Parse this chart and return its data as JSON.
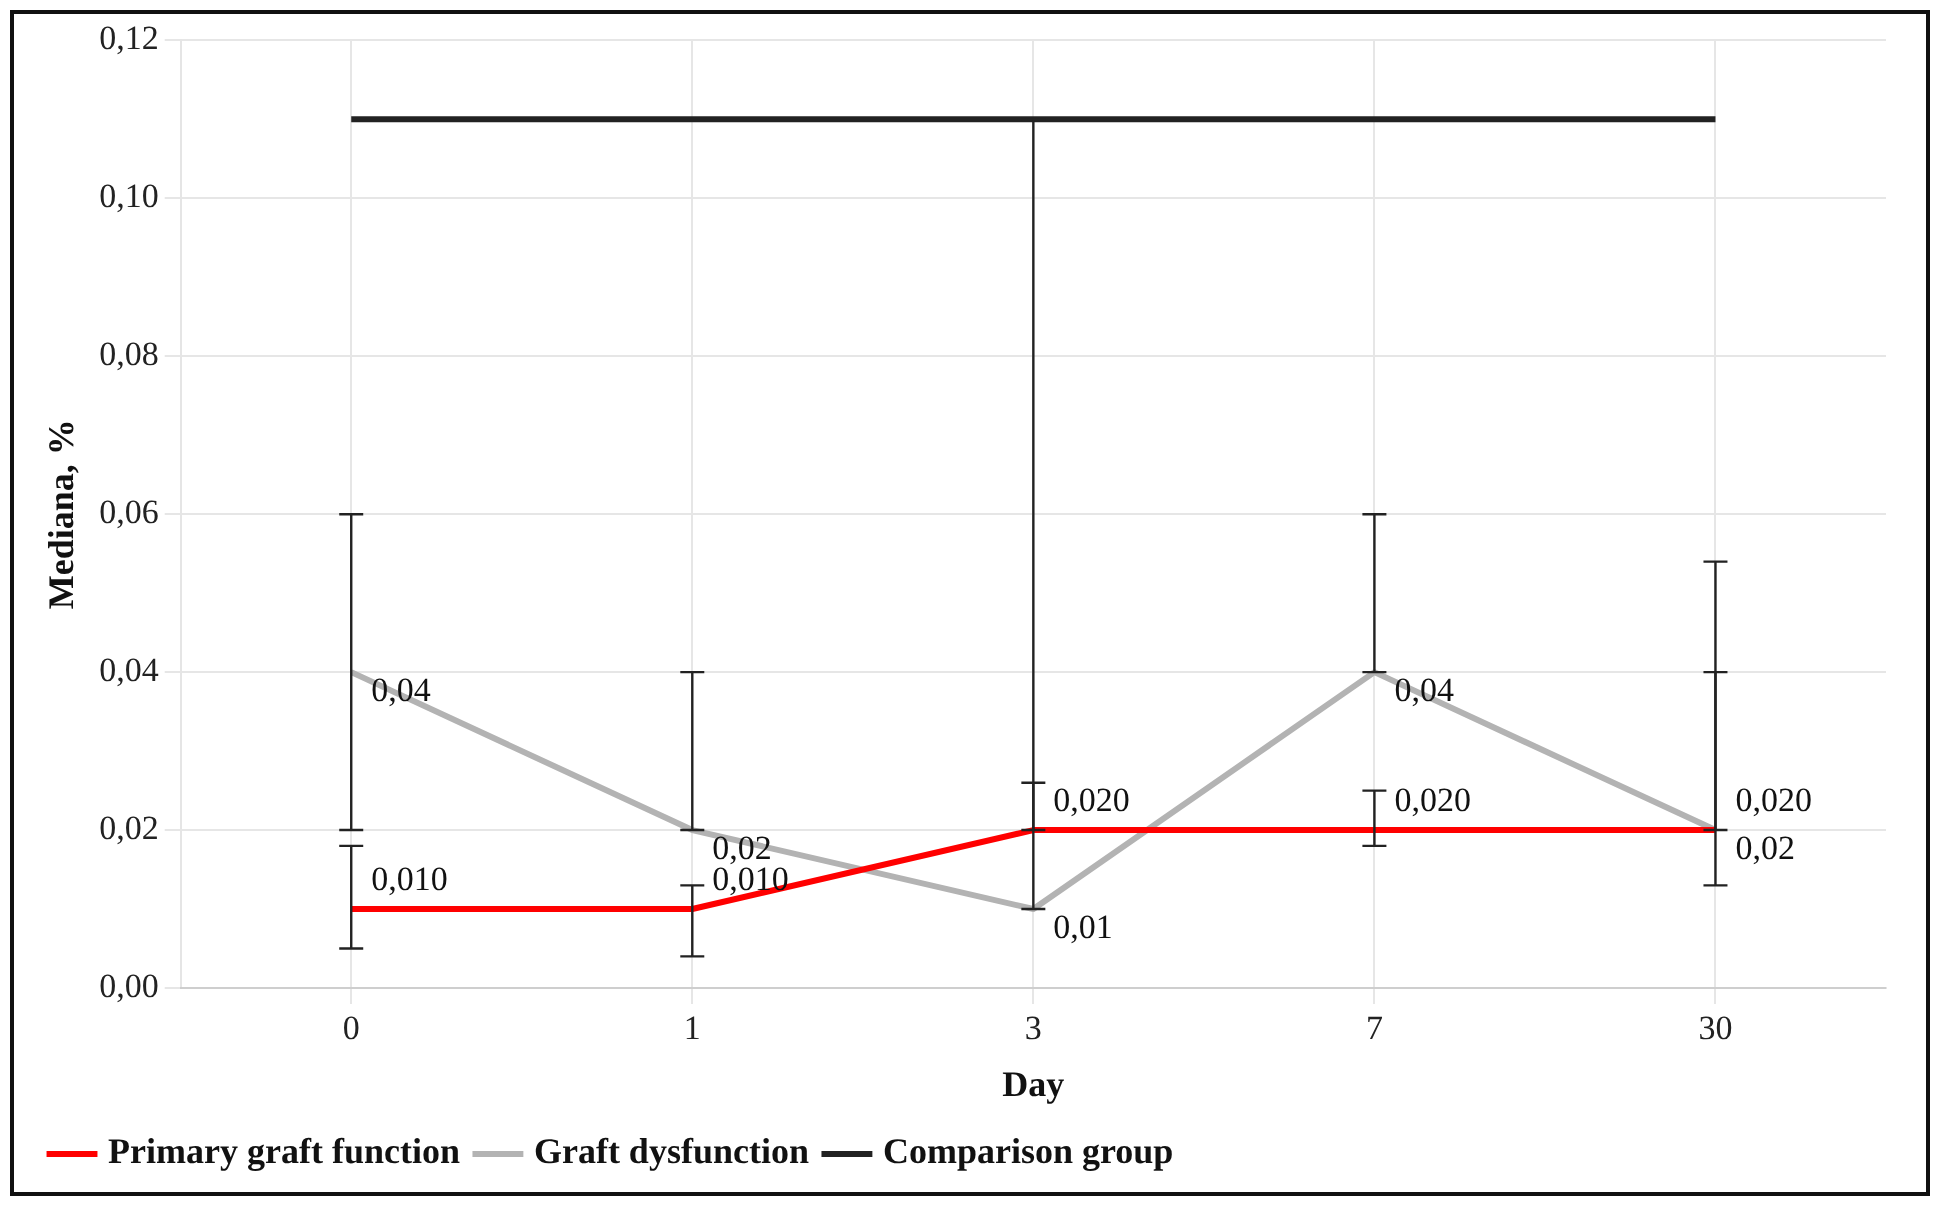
{
  "chart_data": {
    "type": "line",
    "xlabel": "Day",
    "ylabel": "Mediana, %",
    "categories": [
      "0",
      "1",
      "3",
      "7",
      "30"
    ],
    "ylim": [
      0,
      0.12
    ],
    "yticks": [
      {
        "value": 0,
        "label": "0,00"
      },
      {
        "value": 0.02,
        "label": "0,02"
      },
      {
        "value": 0.04,
        "label": "0,04"
      },
      {
        "value": 0.06,
        "label": "0,06"
      },
      {
        "value": 0.08,
        "label": "0,08"
      },
      {
        "value": 0.1,
        "label": "0,10"
      },
      {
        "value": 0.12,
        "label": "0,12"
      }
    ],
    "grid": true,
    "legend": "bottom left",
    "marker": "none",
    "line_style": "solid",
    "series": [
      {
        "name": "Primary graft function",
        "color": "#ff0000",
        "values": [
          0.01,
          0.01,
          0.02,
          0.02,
          0.02
        ],
        "errors": [
          [
            0.005,
            0.018
          ],
          [
            0.004,
            0.013
          ],
          [
            0.02,
            0.026
          ],
          [
            0.018,
            0.025
          ],
          [
            0.02,
            0.04
          ]
        ],
        "value_labels": [
          "0,010",
          "0,010",
          "0,020",
          "0,020",
          "0,020"
        ]
      },
      {
        "name": "Graft dysfunction",
        "color": "#b3b3b3",
        "values": [
          0.04,
          0.02,
          0.01,
          0.04,
          0.02
        ],
        "errors": [
          [
            0.02,
            0.06
          ],
          [
            0.02,
            0.04
          ],
          [
            0.01,
            0.11
          ],
          [
            0.04,
            0.06
          ],
          [
            0.013,
            0.054
          ]
        ],
        "value_labels": [
          "0,04",
          "0,02",
          "0,01",
          "0,04",
          "0,02"
        ]
      },
      {
        "name": "Comparison group",
        "color": "#222222",
        "values": [
          0.11,
          0.11,
          0.11,
          0.11,
          0.11
        ]
      }
    ]
  }
}
